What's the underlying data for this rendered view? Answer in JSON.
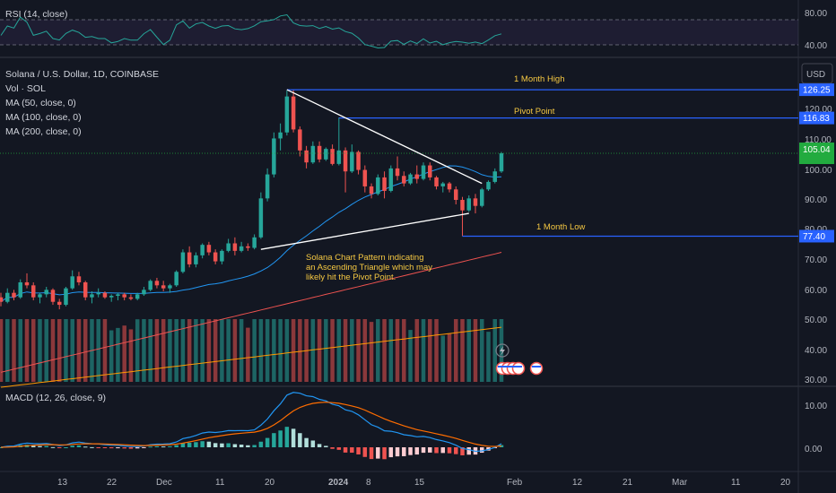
{
  "panes": {
    "rsi_label": "RSI (14, close)",
    "main_title": "Solana / U.S. Dollar, 1D, COINBASE",
    "volume_label": "Vol · SOL",
    "ma_labels": [
      "MA (50, close, 0)",
      "MA (100, close, 0)",
      "MA (200, close, 0)"
    ],
    "macd_label": "MACD (12, 26, close, 9)"
  },
  "currency_button": "USD",
  "annotations": {
    "month_high": "1 Month High",
    "pivot": "Pivot Point",
    "month_low": "1 Month Low",
    "pattern_lines": [
      "Solana Chart Pattern indicating",
      "an Ascending Triangle which may",
      "likely hit the  Pivot Point."
    ]
  },
  "level_tags": {
    "high": "126.25",
    "pivot": "116.83",
    "low": "77.40",
    "last": "105.04"
  },
  "colors": {
    "up": "#26a69a",
    "down": "#ef5350",
    "level_line": "#2962ff",
    "ma50": "#2196f3",
    "ma100": "#ef5350",
    "ma200": "#ff9800",
    "rsi": "#26a69a",
    "macd": "#2196f3",
    "signal": "#ff6d00",
    "annotation": "#f5c842",
    "last_price": "#22ab3f"
  },
  "chart_data": {
    "type": "candlestick",
    "y_axis_ticks": [
      "120.00",
      "110.00",
      "100.00",
      "90.00",
      "80.00",
      "70.00",
      "60.00",
      "50.00",
      "40.00",
      "30.00"
    ],
    "rsi_ticks": [
      "80.00",
      "40.00"
    ],
    "macd_ticks": [
      "10.00",
      "0.00"
    ],
    "x_axis_ticks": [
      "13",
      "22",
      "Dec",
      "11",
      "20",
      "2024",
      "8",
      "15",
      "Feb",
      "12",
      "21",
      "Mar",
      "11",
      "20"
    ],
    "levels": {
      "month_high": 126.25,
      "pivot": 116.83,
      "month_low": 77.4,
      "last": 105.04
    },
    "candles": [
      [
        57.0,
        58.5,
        54.0,
        55.5
      ],
      [
        55.5,
        60.0,
        55.0,
        58.5
      ],
      [
        58.5,
        59.5,
        56.0,
        57.0
      ],
      [
        57.0,
        63.0,
        56.5,
        62.0
      ],
      [
        62.0,
        65.0,
        60.0,
        61.0
      ],
      [
        61.0,
        62.0,
        56.0,
        57.0
      ],
      [
        57.0,
        58.5,
        55.0,
        58.0
      ],
      [
        58.0,
        60.5,
        57.0,
        59.5
      ],
      [
        59.5,
        60.0,
        54.5,
        55.5
      ],
      [
        55.5,
        56.5,
        53.0,
        54.5
      ],
      [
        54.5,
        60.5,
        54.0,
        60.0
      ],
      [
        60.0,
        66.0,
        59.5,
        64.0
      ],
      [
        64.0,
        65.5,
        61.0,
        62.0
      ],
      [
        62.0,
        62.5,
        56.0,
        57.0
      ],
      [
        57.0,
        59.0,
        55.0,
        58.0
      ],
      [
        58.0,
        60.0,
        57.0,
        58.5
      ],
      [
        58.5,
        59.0,
        56.5,
        57.0
      ],
      [
        57.0,
        58.0,
        55.5,
        57.5
      ],
      [
        57.5,
        58.5,
        56.0,
        58.0
      ],
      [
        58.0,
        58.5,
        56.0,
        57.0
      ],
      [
        57.0,
        58.0,
        56.0,
        56.5
      ],
      [
        56.5,
        58.5,
        56.0,
        58.0
      ],
      [
        58.0,
        60.5,
        57.5,
        59.5
      ],
      [
        59.5,
        63.0,
        59.0,
        62.5
      ],
      [
        62.5,
        63.5,
        60.0,
        61.0
      ],
      [
        61.0,
        62.5,
        59.0,
        60.0
      ],
      [
        60.0,
        61.5,
        58.5,
        61.0
      ],
      [
        61.0,
        66.0,
        60.5,
        65.5
      ],
      [
        65.5,
        73.0,
        65.0,
        72.0
      ],
      [
        72.0,
        74.0,
        67.0,
        68.0
      ],
      [
        68.0,
        72.0,
        67.0,
        71.0
      ],
      [
        71.0,
        75.0,
        70.0,
        74.5
      ],
      [
        74.5,
        75.5,
        71.0,
        72.0
      ],
      [
        72.0,
        73.0,
        68.0,
        69.0
      ],
      [
        69.0,
        73.0,
        68.0,
        72.5
      ],
      [
        72.5,
        76.5,
        72.0,
        75.0
      ],
      [
        75.0,
        77.0,
        71.0,
        72.5
      ],
      [
        72.5,
        75.5,
        72.0,
        74.0
      ],
      [
        74.0,
        75.0,
        72.5,
        73.5
      ],
      [
        73.5,
        78.0,
        73.0,
        77.0
      ],
      [
        77.0,
        92.0,
        76.5,
        90.0
      ],
      [
        90.0,
        100.0,
        89.0,
        98.0
      ],
      [
        98.0,
        112.0,
        97.0,
        110.0
      ],
      [
        110.0,
        115.0,
        106.0,
        112.0
      ],
      [
        112.0,
        126.0,
        111.0,
        124.0
      ],
      [
        124.0,
        126.25,
        112.0,
        113.0
      ],
      [
        113.0,
        114.0,
        104.0,
        106.0
      ],
      [
        106.0,
        107.5,
        100.0,
        102.0
      ],
      [
        102.0,
        109.0,
        101.5,
        107.5
      ],
      [
        107.5,
        109.0,
        102.0,
        103.0
      ],
      [
        103.0,
        107.0,
        102.5,
        106.5
      ],
      [
        106.5,
        108.0,
        101.0,
        101.5
      ],
      [
        101.5,
        117.0,
        101.0,
        106.0
      ],
      [
        106.0,
        107.0,
        92.0,
        99.0
      ],
      [
        99.0,
        108.0,
        98.5,
        105.5
      ],
      [
        105.5,
        106.0,
        98.0,
        99.5
      ],
      [
        99.5,
        101.0,
        92.0,
        94.0
      ],
      [
        94.0,
        95.0,
        90.0,
        91.5
      ],
      [
        91.5,
        98.0,
        91.0,
        97.0
      ],
      [
        97.0,
        99.0,
        90.0,
        92.5
      ],
      [
        92.5,
        101.0,
        92.0,
        100.0
      ],
      [
        100.0,
        104.0,
        96.0,
        97.5
      ],
      [
        97.5,
        99.0,
        94.0,
        95.0
      ],
      [
        95.0,
        98.5,
        94.5,
        98.0
      ],
      [
        98.0,
        101.0,
        95.0,
        96.5
      ],
      [
        96.5,
        102.0,
        96.0,
        101.0
      ],
      [
        101.0,
        102.0,
        96.0,
        97.0
      ],
      [
        97.0,
        97.5,
        93.0,
        94.0
      ],
      [
        94.0,
        95.5,
        92.0,
        95.0
      ],
      [
        95.0,
        95.5,
        92.0,
        93.0
      ],
      [
        93.0,
        94.0,
        88.0,
        89.5
      ],
      [
        89.5,
        90.5,
        77.4,
        86.0
      ],
      [
        86.0,
        91.0,
        85.5,
        90.0
      ],
      [
        90.0,
        91.5,
        85.0,
        87.5
      ],
      [
        87.5,
        93.5,
        87.0,
        93.0
      ],
      [
        93.0,
        96.0,
        92.5,
        95.5
      ],
      [
        95.5,
        100.0,
        95.0,
        99.0
      ],
      [
        99.0,
        105.5,
        98.5,
        105.04
      ]
    ]
  }
}
